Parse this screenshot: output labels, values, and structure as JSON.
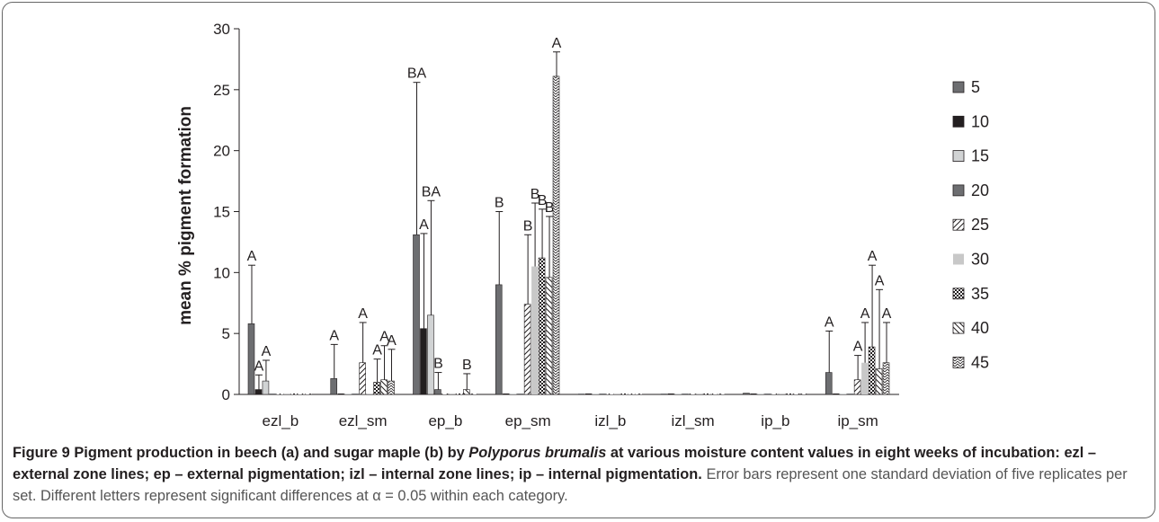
{
  "chart_data": {
    "type": "bar",
    "ylabel": "mean % pigment formation",
    "ylim": [
      0,
      30
    ],
    "yticks": [
      0,
      5,
      10,
      15,
      20,
      25,
      30
    ],
    "categories": [
      "ezl_b",
      "ezl_sm",
      "ep_b",
      "ep_sm",
      "izl_b",
      "izl_sm",
      "ip_b",
      "ip_sm"
    ],
    "legend_position": "right",
    "series": [
      {
        "name": "5",
        "pattern": "dark",
        "values": [
          5.8,
          1.3,
          13.1,
          9.0,
          0,
          0,
          0.1,
          1.8
        ],
        "err": [
          4.8,
          2.8,
          12.5,
          6.0,
          0,
          0,
          0,
          3.4
        ],
        "letters": [
          "A",
          "A",
          "BA",
          "B",
          "",
          "",
          "",
          "A"
        ]
      },
      {
        "name": "10",
        "pattern": "black",
        "values": [
          0.4,
          0,
          5.4,
          0,
          0,
          0,
          0,
          0
        ],
        "err": [
          1.2,
          0,
          7.8,
          0,
          0,
          0,
          0,
          0
        ],
        "letters": [
          "A",
          "",
          "A",
          "",
          "",
          "",
          "",
          ""
        ]
      },
      {
        "name": "15",
        "pattern": "light",
        "values": [
          1.1,
          0,
          6.5,
          0,
          0,
          0,
          0,
          0
        ],
        "err": [
          1.7,
          0,
          9.4,
          0,
          0,
          0,
          0,
          0
        ],
        "letters": [
          "A",
          "",
          "BA",
          "",
          "",
          "",
          "",
          ""
        ]
      },
      {
        "name": "20",
        "pattern": "mid",
        "values": [
          0,
          0,
          0.4,
          0,
          0,
          0,
          0,
          0
        ],
        "err": [
          0,
          0,
          1.4,
          0,
          0,
          0,
          0,
          0
        ],
        "letters": [
          "",
          "",
          "B",
          "",
          "",
          "",
          "",
          ""
        ]
      },
      {
        "name": "25",
        "pattern": "diag",
        "values": [
          0,
          2.6,
          0,
          7.4,
          0,
          0,
          0,
          1.2
        ],
        "err": [
          0,
          3.3,
          0,
          5.7,
          0,
          0,
          0,
          2.0
        ],
        "letters": [
          "",
          "A",
          "",
          "B",
          "",
          "",
          "",
          "A"
        ]
      },
      {
        "name": "30",
        "pattern": "pale",
        "values": [
          0,
          0,
          0,
          10.5,
          0,
          0,
          0,
          2.6
        ],
        "err": [
          0,
          0,
          0,
          5.2,
          0,
          0,
          0,
          3.3
        ],
        "letters": [
          "",
          "",
          "",
          "B",
          "",
          "",
          "",
          "A"
        ]
      },
      {
        "name": "35",
        "pattern": "dots",
        "values": [
          0,
          1.0,
          0,
          11.2,
          0,
          0,
          0,
          3.9
        ],
        "err": [
          0,
          1.9,
          0,
          4.0,
          0,
          0,
          0,
          6.7
        ],
        "letters": [
          "",
          "A",
          "",
          "B",
          "",
          "",
          "",
          "A"
        ]
      },
      {
        "name": "40",
        "pattern": "diagb",
        "values": [
          0,
          1.2,
          0.4,
          9.6,
          0,
          0,
          0,
          2.1
        ],
        "err": [
          0,
          2.8,
          1.3,
          5.0,
          0,
          0,
          0,
          6.5
        ],
        "letters": [
          "",
          "A",
          "B",
          "B",
          "",
          "",
          "",
          "A"
        ]
      },
      {
        "name": "45",
        "pattern": "zigzag",
        "values": [
          0,
          1.1,
          0,
          26.1,
          0,
          0,
          0,
          2.6
        ],
        "err": [
          0,
          2.6,
          0,
          2.0,
          0,
          0,
          0,
          3.3
        ],
        "letters": [
          "",
          "A",
          "",
          "A",
          "",
          "",
          "",
          "A"
        ]
      }
    ]
  },
  "caption": {
    "label": "Figure 9",
    "title_part1": "Pigment production in beech (a) and sugar maple (b) by",
    "species": "Polyporus brumalis",
    "title_part2": "at various moisture content values in eight weeks of incubation: ezl – external zone lines; ep – external pigmentation; izl – internal zone lines; ip – internal pigmentation.",
    "note": "Error bars represent one standard deviation of five replicates per set. Different letters represent significant differences at α = 0.05 within each category."
  },
  "colors": {
    "text": "#231f20",
    "dark": "#6d6e71",
    "black": "#231f20",
    "light": "#d1d3d4",
    "mid": "#6d6e71",
    "pale": "#c8c8c8",
    "note": "#555555"
  }
}
